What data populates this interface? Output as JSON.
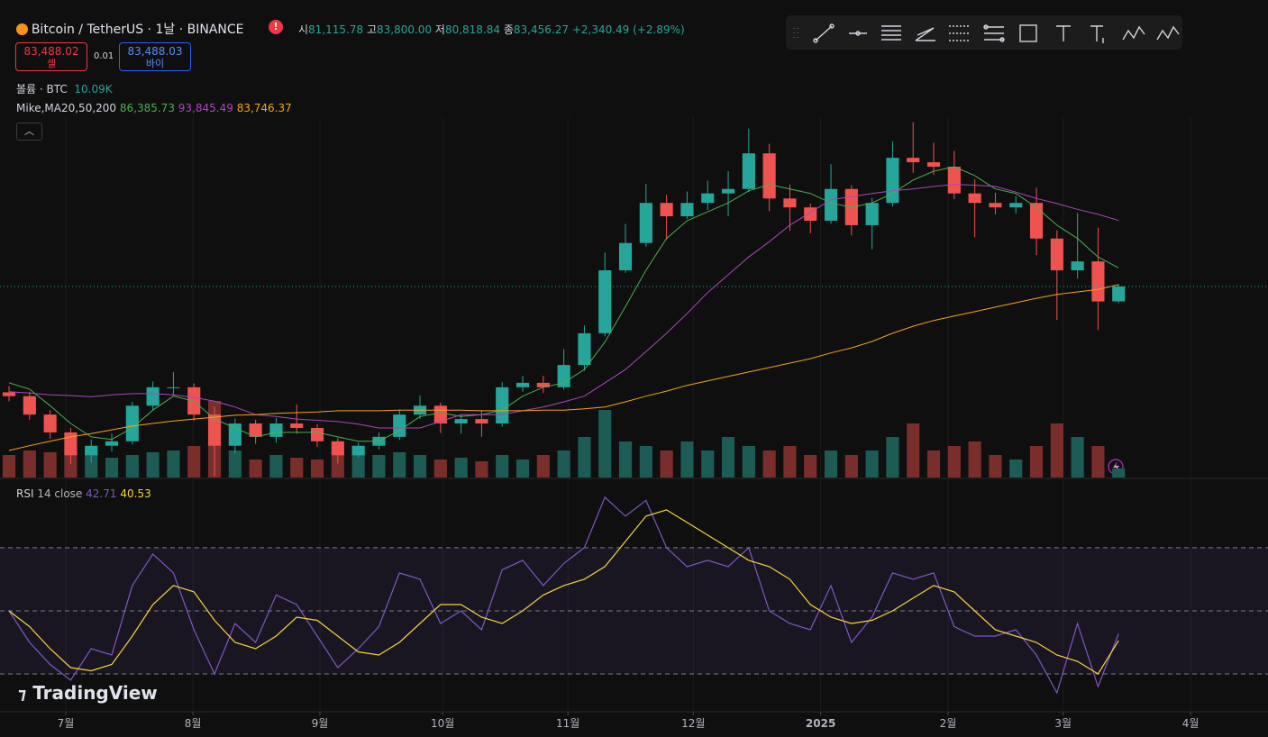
{
  "header": {
    "symbol": "Bitcoin / TetherUS · 1날 · BINANCE",
    "open_label": "시",
    "open": "81,115.78",
    "high_label": "고",
    "high": "83,800.00",
    "low_label": "저",
    "low": "80,818.84",
    "close_label": "종",
    "close": "83,456.27",
    "change": "+2,340.49 (+2.89%)",
    "sell_price": "83,488.02",
    "sell_label": "셀",
    "spread": "0.01",
    "buy_price": "83,488.03",
    "buy_label": "바이",
    "volume_label": "볼륨 · BTC",
    "volume": "10.09K",
    "ma_label": "Mike,MA20,50,200",
    "ma20": "86,385.73",
    "ma50": "93,845.49",
    "ma200": "83,746.37",
    "rsi_label": "RSI",
    "rsi_params": "14 close",
    "rsi": "42.71",
    "rsi_ma": "40.53",
    "logo": "TradingView"
  },
  "chart_data": [
    {
      "type": "candlestick",
      "up_color": "#26a69a",
      "down_color": "#ef5350",
      "grid": true,
      "xlim": [
        -0.44,
        61.27
      ],
      "ylim": [
        53400,
        110100
      ],
      "xticks": [
        {
          "value": 2.76,
          "label": "7월"
        },
        {
          "value": 8.95,
          "label": "8월"
        },
        {
          "value": 15.13,
          "label": "9월"
        },
        {
          "value": 21.1,
          "label": "10월"
        },
        {
          "value": 27.2,
          "label": "11월"
        },
        {
          "value": 33.3,
          "label": "12월"
        },
        {
          "value": 39.5,
          "label": "2025"
        },
        {
          "value": 45.7,
          "label": "2월"
        },
        {
          "value": 51.3,
          "label": "3월"
        },
        {
          "value": 57.5,
          "label": "4월"
        }
      ],
      "open": [
        66800,
        66200,
        63300,
        60500,
        56900,
        58400,
        59100,
        64700,
        67600,
        67600,
        63300,
        58400,
        61900,
        59800,
        61900,
        61200,
        59100,
        56900,
        58400,
        59800,
        63300,
        64700,
        61900,
        62600,
        61900,
        67600,
        68300,
        67600,
        71100,
        76100,
        86000,
        90300,
        96600,
        94500,
        96600,
        98100,
        98800,
        104400,
        97300,
        95900,
        93800,
        98800,
        93100,
        96600,
        103700,
        103000,
        102300,
        98100,
        96600,
        95900,
        96600,
        91000,
        86000,
        87400,
        81115.78
      ],
      "high": [
        67800,
        66900,
        64000,
        61200,
        59400,
        60300,
        65300,
        68500,
        70000,
        68200,
        64500,
        62700,
        62500,
        62800,
        64900,
        61800,
        59600,
        58900,
        60500,
        64100,
        66300,
        65200,
        63400,
        64000,
        68400,
        69400,
        69400,
        73600,
        77300,
        88800,
        93300,
        99600,
        97900,
        98400,
        100100,
        101600,
        108300,
        105900,
        99500,
        96500,
        102700,
        99400,
        97400,
        106300,
        109300,
        106100,
        104800,
        100300,
        98200,
        97700,
        99000,
        92300,
        95000,
        92700,
        83800
      ],
      "low": [
        65400,
        62500,
        59500,
        55500,
        55800,
        57500,
        58600,
        64000,
        66400,
        62300,
        53600,
        57200,
        58700,
        58900,
        60300,
        58200,
        55600,
        56600,
        57800,
        59300,
        62600,
        60400,
        60300,
        59800,
        61400,
        66900,
        66700,
        67200,
        70200,
        75600,
        85600,
        89700,
        90800,
        94100,
        95500,
        94500,
        98300,
        95300,
        92200,
        91800,
        93300,
        91500,
        89300,
        96000,
        101300,
        101000,
        97200,
        91200,
        94800,
        94900,
        88400,
        78200,
        84700,
        76600,
        80818.84
      ],
      "close": [
        66200,
        63300,
        60500,
        56900,
        58400,
        59100,
        64700,
        67600,
        67600,
        63300,
        58400,
        61900,
        59800,
        61900,
        61200,
        59100,
        56900,
        58400,
        59800,
        63300,
        64700,
        61900,
        62600,
        61900,
        67600,
        68300,
        67600,
        71100,
        76100,
        86000,
        90300,
        96600,
        94500,
        96600,
        98100,
        98800,
        104400,
        97300,
        95900,
        93800,
        98800,
        93100,
        96600,
        103700,
        103000,
        102300,
        98100,
        96600,
        95900,
        96600,
        91000,
        86000,
        87400,
        81100,
        83456.27
      ],
      "volume": {
        "ylim": [
          0,
          100000
        ],
        "up_color": "#1d5c55",
        "down_color": "#7a2e2c",
        "values": [
          25000,
          30000,
          28000,
          35000,
          30000,
          22000,
          25000,
          28000,
          30000,
          35000,
          85000,
          30000,
          20000,
          25000,
          22000,
          20000,
          25000,
          30000,
          25000,
          28000,
          25000,
          20000,
          22000,
          18000,
          25000,
          20000,
          25000,
          30000,
          45000,
          75000,
          40000,
          35000,
          30000,
          40000,
          30000,
          45000,
          35000,
          30000,
          35000,
          25000,
          30000,
          25000,
          30000,
          45000,
          60000,
          30000,
          35000,
          40000,
          25000,
          20000,
          35000,
          60000,
          45000,
          35000,
          10090
        ]
      },
      "series": [
        {
          "color": "#4caf50",
          "values": [
            68300,
            67300,
            64700,
            61900,
            59800,
            59400,
            61200,
            64000,
            66200,
            65400,
            62600,
            61200,
            59800,
            60500,
            60500,
            60500,
            59800,
            59100,
            59100,
            60800,
            63000,
            63600,
            63000,
            63300,
            64000,
            66200,
            67600,
            68300,
            70400,
            74700,
            80300,
            86000,
            91000,
            93800,
            95200,
            96600,
            98500,
            99500,
            98800,
            98100,
            96600,
            95900,
            96600,
            98100,
            100200,
            101600,
            102300,
            100900,
            98800,
            98100,
            95900,
            93100,
            91000,
            88100,
            86385.73
          ]
        },
        {
          "color": "#ab47bc",
          "values": [
            66900,
            66700,
            66400,
            66300,
            66100,
            66400,
            66600,
            66600,
            66400,
            66000,
            65400,
            64500,
            63300,
            63000,
            62600,
            62400,
            62200,
            61800,
            61200,
            61200,
            61200,
            62200,
            63300,
            63300,
            63300,
            63900,
            64500,
            65300,
            66200,
            68300,
            70400,
            73200,
            76100,
            79200,
            82500,
            85300,
            88100,
            90500,
            93100,
            95100,
            97100,
            97600,
            98100,
            98500,
            98800,
            99200,
            99500,
            99400,
            99200,
            98300,
            97300,
            96500,
            95600,
            94800,
            93845.49
          ]
        },
        {
          "color": "#f7a21b",
          "values": [
            57650,
            58400,
            59100,
            59800,
            60300,
            60900,
            61500,
            61900,
            62300,
            62600,
            62900,
            63200,
            63300,
            63500,
            63600,
            63700,
            63900,
            63900,
            63900,
            64000,
            64000,
            64000,
            64000,
            63900,
            63900,
            63900,
            64000,
            64000,
            64200,
            64500,
            65300,
            66200,
            67000,
            67900,
            68600,
            69300,
            70000,
            70700,
            71400,
            72100,
            73000,
            73800,
            74800,
            76100,
            77200,
            78100,
            78800,
            79500,
            80200,
            80900,
            81600,
            82200,
            82600,
            83000,
            83746.37
          ]
        }
      ]
    },
    {
      "type": "line",
      "xlim": [
        -0.44,
        61.27
      ],
      "ylim": [
        18,
        89.4
      ],
      "levels": [
        30,
        50,
        70
      ],
      "band_color": "#7e57c2",
      "series": [
        {
          "color": "#7e57c2",
          "values": [
            50,
            40,
            33,
            28,
            38,
            36,
            58,
            68,
            62,
            44,
            30,
            46,
            40,
            55,
            52,
            42,
            32,
            38,
            45,
            62,
            60,
            46,
            50,
            44,
            63,
            66,
            58,
            65,
            70,
            86,
            80,
            85,
            70,
            64,
            66,
            64,
            70,
            50,
            46,
            44,
            58,
            40,
            48,
            62,
            60,
            62,
            45,
            42,
            42,
            44,
            36,
            24,
            46,
            26,
            42.71
          ]
        },
        {
          "color": "#f5d33f",
          "values": [
            50,
            45,
            38,
            32,
            31,
            33,
            42,
            52,
            58,
            56,
            47,
            40,
            38,
            42,
            48,
            47,
            42,
            37,
            36,
            40,
            46,
            52,
            52,
            48,
            46,
            50,
            55,
            58,
            60,
            64,
            72,
            80,
            82,
            78,
            74,
            70,
            66,
            64,
            60,
            52,
            48,
            46,
            47,
            50,
            54,
            58,
            56,
            50,
            44,
            42,
            40,
            36,
            34,
            30,
            40.53
          ]
        }
      ]
    }
  ]
}
